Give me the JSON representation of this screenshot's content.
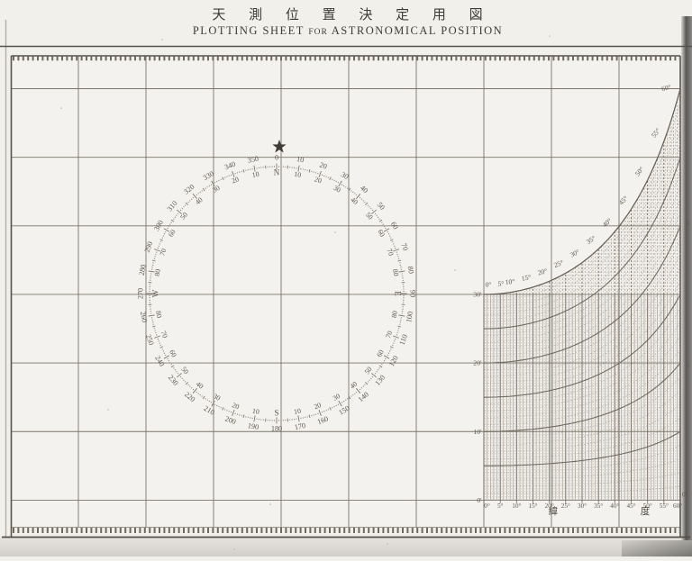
{
  "page": {
    "title_ja": "天 測 位 置 決 定 用 図",
    "title_en_parts": [
      "PLOTTING SHEET",
      "FOR",
      "ASTRONOMICAL POSITION"
    ],
    "colors": {
      "paper": "#f2f0eb",
      "ink": "#6b655b",
      "ink_dark": "#4e4942",
      "grid": "#7b746a",
      "page_edge_shadow": "#595755"
    },
    "icons": {
      "north_star": "★"
    }
  },
  "compass": {
    "cardinals": [
      "N",
      "E",
      "S",
      "W"
    ],
    "outer_labels": [
      "0",
      "10",
      "20",
      "30",
      "40",
      "50",
      "60",
      "70",
      "80",
      "90",
      "100",
      "110",
      "120",
      "130",
      "140",
      "150",
      "160",
      "170",
      "180",
      "190",
      "200",
      "210",
      "220",
      "230",
      "240",
      "250",
      "260",
      "270",
      "280",
      "290",
      "300",
      "310",
      "320",
      "330",
      "340",
      "350"
    ],
    "inner_labels": [
      "N",
      "10",
      "20",
      "30",
      "40",
      "50",
      "60",
      "70",
      "80",
      "E",
      "80",
      "70",
      "60",
      "50",
      "40",
      "30",
      "20",
      "10",
      "S",
      "10",
      "20",
      "30",
      "40",
      "50",
      "60",
      "70",
      "80",
      "W",
      "80",
      "70",
      "60",
      "50",
      "40",
      "30",
      "20",
      "10"
    ]
  },
  "latitude_diagram": {
    "envelope_labels": [
      "0°",
      "5°",
      "10°",
      "15°",
      "20°",
      "25°",
      "30°",
      "35°",
      "40°",
      "45°",
      "50°",
      "55°",
      "60°"
    ],
    "bottom_axis_labels": [
      "0°",
      "5°",
      "10°",
      "15°",
      "20°",
      "25°",
      "30°",
      "35°",
      "40°",
      "45°",
      "50°",
      "55°",
      "60°"
    ],
    "left_minute_labels": [
      "0'",
      "10'",
      "20'",
      "30'"
    ],
    "right_edge_labels": [
      "0'",
      "1",
      "2"
    ],
    "axis_title_chars": [
      "緯",
      "度"
    ],
    "max_latitude_deg": 60,
    "max_minutes": 30,
    "solid_curve_minutes": [
      5,
      10,
      15,
      20,
      25,
      30
    ]
  }
}
